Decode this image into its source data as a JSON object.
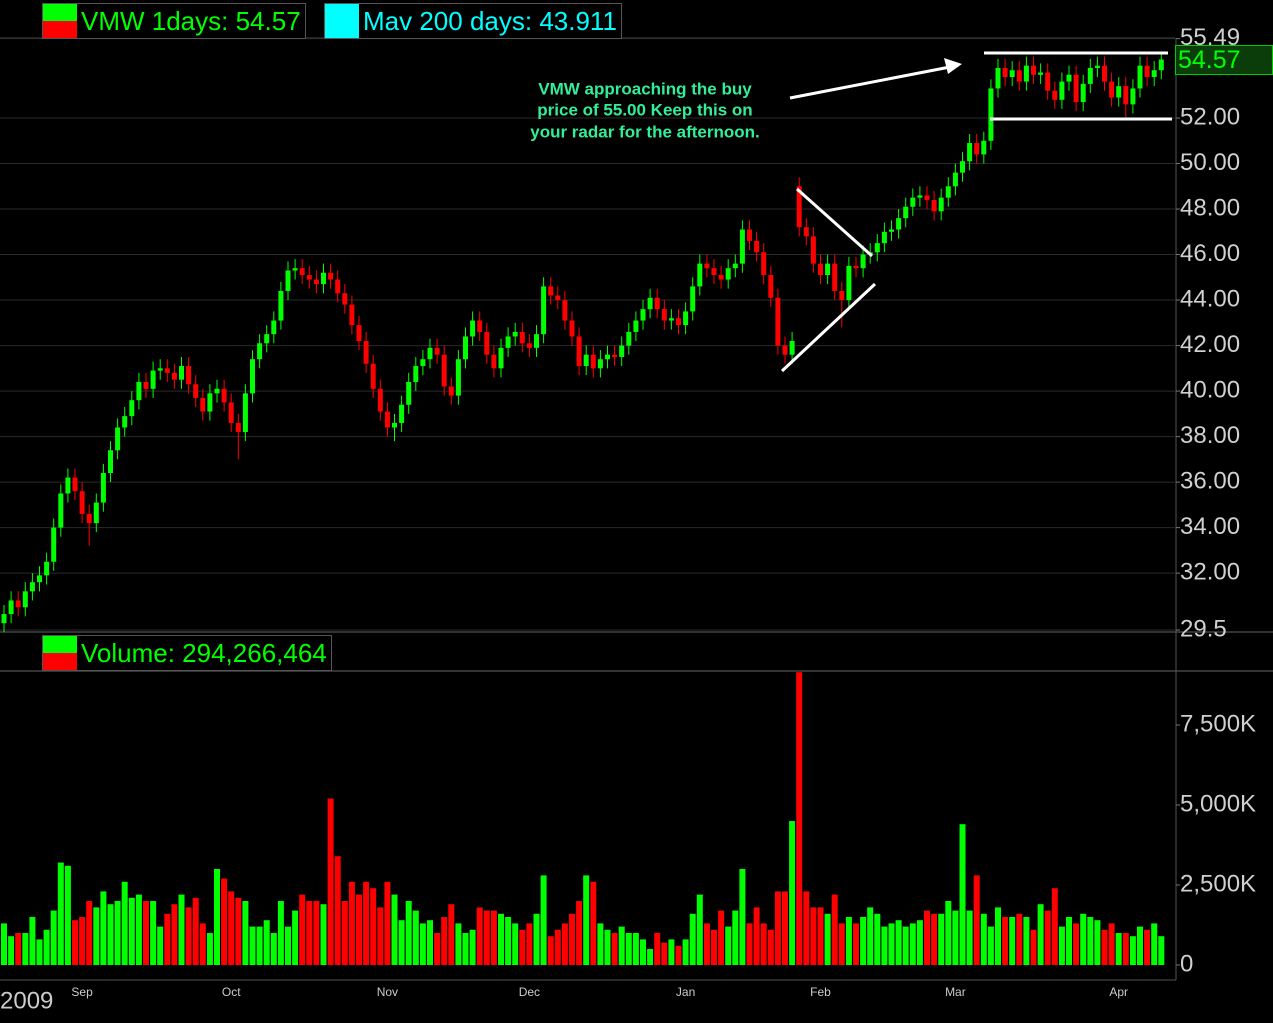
{
  "chart_data": [
    {
      "type": "candlestick",
      "legend": [
        {
          "name": "VMW 1days: 54.57",
          "colors": [
            "#00ff00",
            "#ff0000"
          ]
        },
        {
          "name": "Mav 200 days: 43.911",
          "color": "#00ffff"
        }
      ],
      "annotation": [
        "VMW approaching the buy",
        "price of 55.00  Keep this on",
        "your radar for the afternoon."
      ],
      "up_color": "#00ff00",
      "down_color": "#ff0000",
      "ylim": [
        29.5,
        55.49
      ],
      "yticks": [
        29.5,
        {
          "value": 32,
          "label": "32.00"
        },
        {
          "value": 34,
          "label": "34.00"
        },
        {
          "value": 36,
          "label": "36.00"
        },
        {
          "value": 38,
          "label": "38.00"
        },
        {
          "value": 40,
          "label": "40.00"
        },
        {
          "value": 42,
          "label": "42.00"
        },
        {
          "value": 44,
          "label": "44.00"
        },
        {
          "value": 46,
          "label": "46.00"
        },
        {
          "value": 48,
          "label": "48.00"
        },
        {
          "value": 50,
          "label": "50.00"
        },
        {
          "value": 52,
          "label": "52.00"
        },
        {
          "value": 55.49,
          "label": "55.49"
        }
      ],
      "grid": true,
      "open": [
        29.8,
        30.2,
        30.8,
        30.5,
        31.2,
        31.6,
        31.9,
        32.5,
        34,
        35.5,
        36.2,
        35.6,
        34.6,
        34.2,
        35.1,
        36.4,
        37.4,
        38.4,
        38.9,
        39.6,
        40.4,
        40.1,
        40.9,
        41.0,
        40.8,
        40.5,
        41.1,
        40.3,
        39.7,
        39.1,
        39.9,
        40.1,
        39.5,
        38.6,
        38.2,
        39.9,
        41.4,
        42.1,
        42.5,
        43.1,
        44.4,
        45.3,
        45.4,
        45.1,
        44.9,
        44.7,
        45.2,
        44.9,
        44.3,
        43.8,
        42.9,
        42.2,
        41.2,
        40.1,
        39.1,
        38.4,
        38.6,
        39.4,
        40.4,
        41.1,
        41.4,
        41.9,
        41.6,
        40.2,
        39.8,
        41.4,
        42.4,
        43.1,
        42.6,
        41.6,
        41.0,
        41.9,
        42.4,
        42.6,
        42.1,
        41.9,
        42.5,
        44.6,
        44.2,
        44.0,
        43.1,
        42.4,
        41.1,
        41.6,
        41.0,
        41.4,
        41.6,
        41.5,
        42.0,
        42.6,
        43.1,
        43.6,
        44.1,
        43.6,
        43.1,
        43.2,
        42.9,
        43.5,
        44.6,
        45.6,
        45.4,
        45.1,
        44.9,
        45.4,
        45.6,
        47.1,
        46.6,
        46.1,
        45.1,
        44.1,
        42.0,
        41.6,
        49.0,
        47.2,
        46.8,
        45.6,
        45.1,
        45.6,
        44.4,
        44.0,
        45.5,
        45.4,
        46.0,
        46.1,
        46.5,
        47.0,
        47.1,
        47.6,
        48.1,
        48.5,
        48.6,
        48.4,
        47.9,
        48.5,
        49.0,
        49.6,
        50.1,
        50.9,
        50.4,
        51.0,
        53.3,
        54.2,
        53.8,
        54.1,
        53.6,
        54.3,
        53.9,
        54.0,
        53.2,
        52.8,
        53.6,
        53.9,
        52.7,
        53.5,
        54.2,
        54.3,
        53.6,
        52.9,
        53.4,
        52.6,
        53.3,
        54.3,
        53.8,
        54.1
      ],
      "high": [
        30.6,
        31.2,
        31.2,
        31.6,
        32.0,
        32.3,
        32.9,
        34.4,
        35.9,
        36.6,
        36.6,
        36.0,
        35.0,
        35.5,
        36.8,
        37.8,
        38.8,
        39.3,
        40.0,
        40.8,
        40.8,
        41.3,
        41.4,
        41.4,
        41.2,
        41.5,
        41.5,
        40.7,
        40.1,
        40.3,
        40.5,
        40.5,
        39.9,
        39.0,
        40.3,
        41.8,
        42.5,
        42.9,
        43.5,
        44.8,
        45.7,
        45.8,
        45.8,
        45.5,
        45.3,
        45.6,
        45.6,
        45.3,
        44.7,
        44.2,
        43.3,
        42.6,
        41.6,
        40.5,
        39.5,
        39.0,
        39.8,
        40.8,
        41.5,
        41.8,
        42.3,
        42.3,
        42.0,
        40.6,
        41.8,
        42.8,
        43.5,
        43.5,
        43.0,
        42.0,
        42.3,
        42.8,
        43.0,
        43.0,
        42.5,
        42.9,
        45.0,
        45.0,
        44.6,
        44.4,
        43.5,
        42.8,
        42.0,
        42.0,
        41.8,
        42.0,
        42.0,
        42.4,
        43.0,
        43.5,
        44.0,
        44.5,
        44.5,
        44.0,
        43.6,
        43.6,
        43.9,
        45.0,
        46.0,
        46.0,
        45.8,
        45.5,
        45.8,
        46.0,
        47.5,
        47.5,
        47.0,
        46.5,
        45.5,
        44.5,
        42.4,
        42.6,
        49.4,
        47.6,
        47.2,
        46.0,
        46.0,
        46.0,
        44.8,
        45.9,
        45.9,
        46.4,
        46.5,
        46.9,
        47.4,
        47.5,
        48.0,
        48.5,
        48.9,
        49.0,
        49.0,
        48.8,
        48.9,
        49.4,
        50.0,
        50.5,
        51.3,
        51.3,
        51.4,
        53.7,
        54.6,
        54.6,
        54.5,
        54.5,
        54.7,
        54.7,
        54.4,
        54.4,
        53.6,
        54.0,
        54.3,
        54.3,
        53.9,
        54.6,
        54.7,
        54.7,
        54.0,
        53.8,
        53.8,
        53.7,
        54.7,
        54.7,
        54.5,
        54.9
      ],
      "low": [
        29.4,
        29.8,
        30.1,
        30.1,
        30.8,
        31.2,
        31.5,
        32.1,
        33.6,
        35.1,
        35.2,
        34.2,
        33.2,
        33.8,
        34.7,
        36.0,
        37.0,
        38.0,
        38.5,
        39.2,
        39.7,
        39.7,
        40.5,
        40.4,
        40.1,
        40.1,
        39.9,
        39.3,
        38.7,
        38.7,
        39.5,
        39.1,
        38.2,
        37.0,
        37.8,
        39.5,
        41.0,
        41.7,
        42.1,
        42.7,
        44.0,
        44.9,
        44.7,
        44.5,
        44.3,
        44.3,
        44.5,
        43.9,
        43.4,
        42.5,
        41.8,
        40.8,
        39.7,
        38.7,
        38.0,
        37.8,
        38.2,
        39.0,
        40.0,
        40.7,
        41.0,
        41.2,
        39.8,
        39.4,
        39.4,
        41.0,
        42.0,
        42.2,
        41.2,
        40.6,
        40.6,
        41.5,
        42.0,
        41.7,
        41.5,
        41.5,
        42.1,
        43.8,
        43.6,
        42.7,
        42.0,
        40.7,
        40.7,
        40.6,
        40.6,
        41.0,
        41.1,
        41.1,
        41.6,
        42.2,
        42.7,
        43.2,
        43.2,
        42.7,
        42.7,
        42.5,
        42.5,
        43.1,
        44.2,
        45.0,
        44.7,
        44.5,
        44.5,
        45.0,
        45.2,
        46.2,
        45.7,
        44.7,
        43.7,
        41.6,
        41.2,
        41.2,
        46.8,
        46.4,
        45.2,
        44.7,
        44.7,
        44.0,
        42.8,
        43.6,
        45.0,
        45.0,
        45.6,
        45.7,
        46.1,
        46.6,
        46.7,
        47.2,
        47.7,
        48.1,
        48.0,
        47.5,
        47.5,
        48.1,
        48.6,
        49.2,
        49.7,
        50.0,
        50.0,
        50.6,
        52.9,
        53.4,
        53.4,
        53.2,
        53.2,
        53.5,
        53.5,
        52.8,
        52.4,
        52.4,
        53.2,
        52.3,
        52.3,
        53.1,
        53.8,
        53.2,
        52.5,
        52.5,
        52.0,
        52.2,
        52.9,
        53.4,
        53.4,
        53.7
      ],
      "close": [
        30.2,
        30.8,
        30.5,
        31.2,
        31.6,
        31.9,
        32.5,
        34,
        35.5,
        36.2,
        35.6,
        34.6,
        34.2,
        35.1,
        36.4,
        37.4,
        38.4,
        38.9,
        39.6,
        40.4,
        40.1,
        40.9,
        41.0,
        40.8,
        40.5,
        41.1,
        40.3,
        39.7,
        39.1,
        39.9,
        40.1,
        39.5,
        38.6,
        38.2,
        39.9,
        41.4,
        42.1,
        42.5,
        43.1,
        44.4,
        45.3,
        45.4,
        45.1,
        44.9,
        44.7,
        45.2,
        44.9,
        44.3,
        43.8,
        42.9,
        42.2,
        41.2,
        40.1,
        39.1,
        38.4,
        38.6,
        39.4,
        40.4,
        41.1,
        41.4,
        41.9,
        41.6,
        40.2,
        39.8,
        41.4,
        42.4,
        43.1,
        42.6,
        41.6,
        41.0,
        41.9,
        42.4,
        42.6,
        42.1,
        41.9,
        42.5,
        44.6,
        44.2,
        44.0,
        43.1,
        42.4,
        41.1,
        41.6,
        41.0,
        41.4,
        41.6,
        41.5,
        42.0,
        42.6,
        43.1,
        43.6,
        44.1,
        43.6,
        43.1,
        43.2,
        42.9,
        43.5,
        44.6,
        45.6,
        45.4,
        45.1,
        44.9,
        45.4,
        45.6,
        47.1,
        46.6,
        46.1,
        45.1,
        44.1,
        42.0,
        41.6,
        42.2,
        47.2,
        46.8,
        45.6,
        45.1,
        45.6,
        44.4,
        44.0,
        45.5,
        45.4,
        46.0,
        46.1,
        46.5,
        47.0,
        47.1,
        47.6,
        48.1,
        48.5,
        48.6,
        48.4,
        47.9,
        48.5,
        49.0,
        49.6,
        50.1,
        50.9,
        50.4,
        51.0,
        53.3,
        54.2,
        53.8,
        54.1,
        53.6,
        54.3,
        53.9,
        54.0,
        53.2,
        52.8,
        53.6,
        53.9,
        52.7,
        53.5,
        54.2,
        54.3,
        53.6,
        52.9,
        53.4,
        52.6,
        53.3,
        54.3,
        53.8,
        54.1,
        54.57
      ]
    },
    {
      "type": "volume_bar",
      "legend": [
        {
          "name": "Volume: 294,266,464",
          "colors": [
            "#00ff00",
            "#ff0000"
          ]
        }
      ],
      "year_label": "2009",
      "up_color": "#00ff00",
      "down_color": "#ff0000",
      "categories": [
        null,
        null,
        null,
        null,
        null,
        null,
        null,
        null,
        null,
        null,
        null,
        "Sep",
        null,
        null,
        null,
        null,
        null,
        null,
        null,
        null,
        null,
        null,
        null,
        null,
        null,
        null,
        null,
        null,
        null,
        null,
        null,
        null,
        "Oct",
        null,
        null,
        null,
        null,
        null,
        null,
        null,
        null,
        null,
        null,
        null,
        null,
        null,
        null,
        null,
        null,
        null,
        null,
        null,
        null,
        null,
        "Nov",
        null,
        null,
        null,
        null,
        null,
        null,
        null,
        null,
        null,
        null,
        null,
        null,
        null,
        null,
        null,
        null,
        null,
        null,
        null,
        "Dec",
        null,
        null,
        null,
        null,
        null,
        null,
        null,
        null,
        null,
        null,
        null,
        null,
        null,
        null,
        null,
        null,
        null,
        null,
        null,
        null,
        null,
        "Jan",
        null,
        null,
        null,
        null,
        null,
        null,
        null,
        null,
        null,
        null,
        null,
        null,
        null,
        null,
        null,
        null,
        null,
        null,
        "Feb",
        null,
        null,
        null,
        null,
        null,
        null,
        null,
        null,
        null,
        null,
        null,
        null,
        null,
        null,
        null,
        null,
        null,
        null,
        "Mar",
        null,
        null,
        null,
        null,
        null,
        null,
        null,
        null,
        null,
        null,
        null,
        null,
        null,
        null,
        null,
        null,
        null,
        null,
        null,
        null,
        null,
        null,
        "Apr",
        null,
        null,
        null,
        null,
        null,
        null
      ],
      "values": [
        1300000,
        900000,
        1000000,
        1000000,
        1500000,
        800000,
        1100000,
        1700000,
        3200000,
        3100000,
        1400000,
        1500000,
        2000000,
        1800000,
        2300000,
        1900000,
        2000000,
        2600000,
        2100000,
        2200000,
        2000000,
        2000000,
        1200000,
        1600000,
        1900000,
        2200000,
        1800000,
        2100000,
        1300000,
        1000000,
        3000000,
        2700000,
        2300000,
        2100000,
        2000000,
        1200000,
        1200000,
        1400000,
        1000000,
        2000000,
        1200000,
        1700000,
        2200000,
        2000000,
        2000000,
        1900000,
        5200000,
        3400000,
        2000000,
        2600000,
        2200000,
        2600000,
        2400000,
        1800000,
        2600000,
        2200000,
        1400000,
        2000000,
        1700000,
        1300000,
        1400000,
        1000000,
        1500000,
        1900000,
        1300000,
        1000000,
        1100000,
        1800000,
        1700000,
        1700000,
        1600000,
        1500000,
        1300000,
        1100000,
        1300000,
        1600000,
        2800000,
        900000,
        1100000,
        1300000,
        1600000,
        2000000,
        2800000,
        2600000,
        1300000,
        1100000,
        1000000,
        1200000,
        1000000,
        1000000,
        800000,
        500000,
        1000000,
        700000,
        800000,
        600000,
        800000,
        1600000,
        2200000,
        1300000,
        1100000,
        1700000,
        1200000,
        1700000,
        3000000,
        1300000,
        1800000,
        1300000,
        1100000,
        2300000,
        2300000,
        4500000,
        9150000,
        2300000,
        1800000,
        1800000,
        1600000,
        2200000,
        1300000,
        1500000,
        1300000,
        1500000,
        1800000,
        1600000,
        1200000,
        1300000,
        1400000,
        1200000,
        1300000,
        1400000,
        1700000,
        1600000,
        1600000,
        2000000,
        1700000,
        4400000,
        1700000,
        2800000,
        1600000,
        1200000,
        1800000,
        1500000,
        1500000,
        1600000,
        1500000,
        1100000,
        1900000,
        1700000,
        2400000,
        1200000,
        1500000,
        1300000,
        1600000,
        1500000,
        1400000,
        1100000,
        1300000,
        1000000,
        1000000,
        900000,
        1200000,
        1100000,
        1300000,
        900000
      ],
      "ylim": [
        0,
        9156000
      ],
      "yticks": [
        0,
        {
          "value": 2500000,
          "label": "2,500K"
        },
        {
          "value": 5000000,
          "label": "5,000K"
        },
        {
          "value": 7500000,
          "label": "7,500K"
        }
      ],
      "grid": false
    }
  ]
}
